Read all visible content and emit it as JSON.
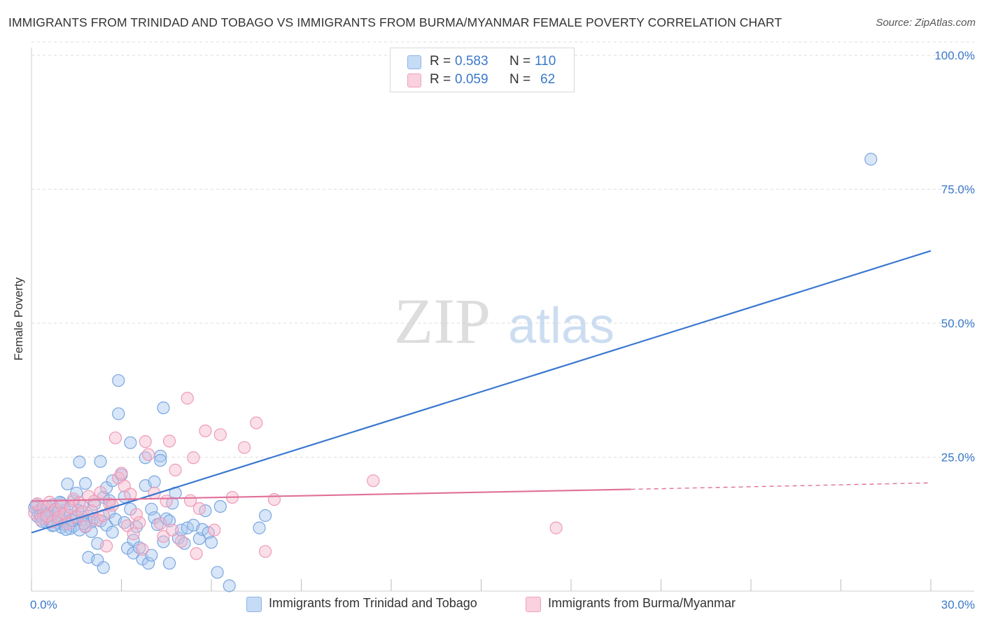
{
  "title": "IMMIGRANTS FROM TRINIDAD AND TOBAGO VS IMMIGRANTS FROM BURMA/MYANMAR FEMALE POVERTY CORRELATION CHART",
  "source": "Source: ZipAtlas.com",
  "watermark": {
    "zip": "ZIP",
    "atlas": "atlas"
  },
  "legend": {
    "rows": [
      {
        "r_label": "R =",
        "r_value": "0.583",
        "n_label": "N =",
        "n_value": "110",
        "color": "#a8c8f0"
      },
      {
        "r_label": "R =",
        "r_value": "0.059",
        "n_label": "N =",
        "n_value": "62",
        "color": "#f5b8cc"
      }
    ]
  },
  "bottom_legend": [
    {
      "label": "Immigrants from Trinidad and Tobago",
      "color": "#a8c8f0"
    },
    {
      "label": "Immigrants from Burma/Myanmar",
      "color": "#f5b8cc"
    }
  ],
  "chart_data": {
    "type": "scatter",
    "title": "IMMIGRANTS FROM TRINIDAD AND TOBAGO VS IMMIGRANTS FROM BURMA/MYANMAR FEMALE POVERTY CORRELATION CHART",
    "xlabel": "",
    "ylabel": "Female Poverty",
    "xlim": [
      0,
      30
    ],
    "ylim": [
      0,
      100
    ],
    "x_tick_labels": [
      "0.0%",
      "30.0%"
    ],
    "y_tick_labels": [
      "25.0%",
      "50.0%",
      "75.0%",
      "100.0%"
    ],
    "y_ticks": [
      25,
      50,
      75,
      100
    ],
    "grid": true,
    "legend_position": "top-center",
    "series": [
      {
        "name": "Immigrants from Trinidad and Tobago",
        "color": "#3a78d0",
        "fill": "#a8c8f0",
        "trend": {
          "x": [
            0,
            30
          ],
          "y": [
            10.9,
            63.5
          ]
        },
        "points": [
          [
            0.1,
            15.6
          ],
          [
            0.2,
            14.8
          ],
          [
            0.2,
            13.9
          ],
          [
            0.3,
            15.2
          ],
          [
            0.3,
            14.1
          ],
          [
            0.4,
            13.6
          ],
          [
            0.4,
            14.4
          ],
          [
            0.5,
            12.8
          ],
          [
            0.5,
            15.8
          ],
          [
            0.6,
            13.1
          ],
          [
            0.6,
            14.6
          ],
          [
            0.7,
            12.2
          ],
          [
            0.7,
            16.1
          ],
          [
            0.8,
            13.8
          ],
          [
            0.8,
            15.3
          ],
          [
            0.9,
            12.7
          ],
          [
            0.9,
            14.9
          ],
          [
            1.0,
            11.9
          ],
          [
            1.0,
            16.4
          ],
          [
            1.0,
            13.4
          ],
          [
            1.1,
            12.4
          ],
          [
            1.1,
            15.1
          ],
          [
            1.2,
            13.0
          ],
          [
            1.2,
            20.0
          ],
          [
            1.3,
            11.7
          ],
          [
            1.3,
            14.2
          ],
          [
            1.4,
            16.8
          ],
          [
            1.4,
            12.1
          ],
          [
            1.5,
            13.7
          ],
          [
            1.5,
            18.3
          ],
          [
            1.6,
            24.1
          ],
          [
            1.6,
            11.4
          ],
          [
            1.7,
            15.9
          ],
          [
            1.7,
            13.3
          ],
          [
            1.8,
            12.0
          ],
          [
            1.8,
            20.1
          ],
          [
            1.9,
            14.0
          ],
          [
            1.9,
            6.3
          ],
          [
            2.0,
            12.9
          ],
          [
            2.0,
            11.1
          ],
          [
            2.1,
            16.2
          ],
          [
            2.1,
            13.6
          ],
          [
            2.2,
            5.8
          ],
          [
            2.2,
            8.9
          ],
          [
            2.3,
            13.1
          ],
          [
            2.3,
            24.2
          ],
          [
            2.4,
            4.4
          ],
          [
            2.4,
            17.5
          ],
          [
            2.5,
            12.3
          ],
          [
            2.5,
            19.3
          ],
          [
            2.6,
            14.7
          ],
          [
            2.6,
            16.9
          ],
          [
            2.7,
            20.6
          ],
          [
            2.7,
            11.0
          ],
          [
            2.8,
            13.4
          ],
          [
            2.9,
            39.3
          ],
          [
            2.9,
            33.1
          ],
          [
            3.0,
            21.7
          ],
          [
            3.1,
            12.8
          ],
          [
            3.1,
            17.6
          ],
          [
            3.2,
            8.0
          ],
          [
            3.3,
            27.7
          ],
          [
            3.3,
            15.3
          ],
          [
            3.4,
            9.5
          ],
          [
            3.4,
            7.1
          ],
          [
            3.5,
            12.0
          ],
          [
            3.6,
            8.1
          ],
          [
            3.7,
            6.0
          ],
          [
            3.8,
            19.7
          ],
          [
            3.8,
            24.9
          ],
          [
            3.9,
            5.2
          ],
          [
            4.0,
            15.3
          ],
          [
            4.0,
            6.7
          ],
          [
            4.1,
            20.4
          ],
          [
            4.1,
            13.7
          ],
          [
            4.2,
            12.4
          ],
          [
            4.3,
            25.2
          ],
          [
            4.3,
            24.4
          ],
          [
            4.4,
            34.2
          ],
          [
            4.4,
            9.2
          ],
          [
            4.5,
            13.5
          ],
          [
            4.6,
            5.2
          ],
          [
            4.6,
            13.1
          ],
          [
            4.7,
            16.4
          ],
          [
            4.8,
            18.3
          ],
          [
            4.9,
            9.9
          ],
          [
            5.0,
            11.4
          ],
          [
            5.1,
            8.9
          ],
          [
            5.2,
            11.8
          ],
          [
            5.4,
            12.3
          ],
          [
            5.6,
            9.8
          ],
          [
            5.7,
            11.5
          ],
          [
            5.8,
            15.0
          ],
          [
            5.9,
            10.9
          ],
          [
            6.0,
            9.1
          ],
          [
            6.2,
            3.5
          ],
          [
            6.3,
            15.8
          ],
          [
            6.6,
            1.0
          ],
          [
            7.6,
            11.8
          ],
          [
            7.8,
            14.1
          ],
          [
            0.15,
            16.1
          ],
          [
            0.35,
            13.0
          ],
          [
            0.55,
            14.0
          ],
          [
            0.75,
            12.3
          ],
          [
            0.95,
            16.6
          ],
          [
            1.15,
            11.5
          ],
          [
            1.35,
            13.2
          ],
          [
            1.55,
            15.1
          ],
          [
            1.75,
            12.6
          ],
          [
            28.0,
            80.6
          ]
        ]
      },
      {
        "name": "Immigrants from Burma/Myanmar",
        "color": "#e0709a",
        "fill": "#f5b8cc",
        "trend": {
          "x": [
            0,
            20
          ],
          "y": [
            16.8,
            19.0
          ],
          "dashed_to": {
            "x": 30,
            "y": 20.2
          }
        },
        "points": [
          [
            0.1,
            14.6
          ],
          [
            0.2,
            16.3
          ],
          [
            0.3,
            13.4
          ],
          [
            0.4,
            15.8
          ],
          [
            0.5,
            14.0
          ],
          [
            0.6,
            16.6
          ],
          [
            0.7,
            12.9
          ],
          [
            0.8,
            15.2
          ],
          [
            0.9,
            13.7
          ],
          [
            1.0,
            16.0
          ],
          [
            1.1,
            14.4
          ],
          [
            1.2,
            12.6
          ],
          [
            1.3,
            15.6
          ],
          [
            1.4,
            17.2
          ],
          [
            1.5,
            13.9
          ],
          [
            1.6,
            16.5
          ],
          [
            1.7,
            14.8
          ],
          [
            1.8,
            12.1
          ],
          [
            1.9,
            17.7
          ],
          [
            2.0,
            15.0
          ],
          [
            2.1,
            16.8
          ],
          [
            2.2,
            13.3
          ],
          [
            2.3,
            18.4
          ],
          [
            2.4,
            14.1
          ],
          [
            2.5,
            8.4
          ],
          [
            2.6,
            16.3
          ],
          [
            2.7,
            16.0
          ],
          [
            2.8,
            28.6
          ],
          [
            2.9,
            21.1
          ],
          [
            3.0,
            22.0
          ],
          [
            3.1,
            19.6
          ],
          [
            3.2,
            12.2
          ],
          [
            3.3,
            18.1
          ],
          [
            3.4,
            10.7
          ],
          [
            3.5,
            14.3
          ],
          [
            3.6,
            12.8
          ],
          [
            3.7,
            7.8
          ],
          [
            3.8,
            27.9
          ],
          [
            3.9,
            25.5
          ],
          [
            4.1,
            18.3
          ],
          [
            4.3,
            12.6
          ],
          [
            4.4,
            10.2
          ],
          [
            4.5,
            16.8
          ],
          [
            4.6,
            28.0
          ],
          [
            4.7,
            11.4
          ],
          [
            4.8,
            22.6
          ],
          [
            5.0,
            9.3
          ],
          [
            5.2,
            36.0
          ],
          [
            5.3,
            16.9
          ],
          [
            5.4,
            24.9
          ],
          [
            5.5,
            7.0
          ],
          [
            5.6,
            15.4
          ],
          [
            5.8,
            29.9
          ],
          [
            6.1,
            11.4
          ],
          [
            6.3,
            29.2
          ],
          [
            6.7,
            17.5
          ],
          [
            7.1,
            26.8
          ],
          [
            7.5,
            31.4
          ],
          [
            7.8,
            7.4
          ],
          [
            8.1,
            17.1
          ],
          [
            11.4,
            20.6
          ],
          [
            17.5,
            11.8
          ]
        ]
      }
    ]
  }
}
